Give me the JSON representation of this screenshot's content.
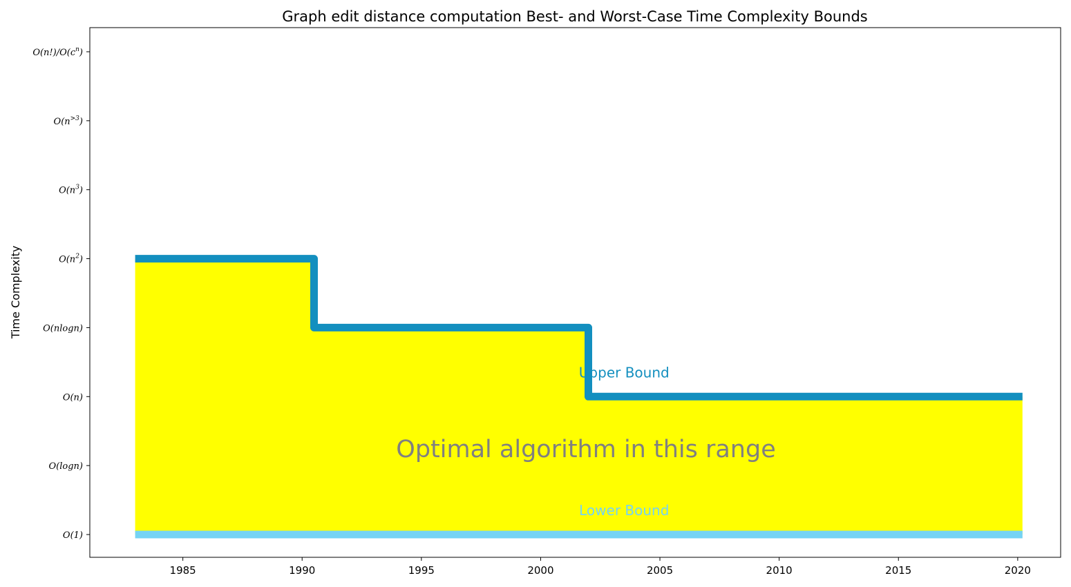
{
  "chart_data": {
    "type": "area",
    "title": "Graph edit distance computation Best- and Worst-Case Time Complexity Bounds",
    "xlabel": "",
    "ylabel": "Time Complexity",
    "xlim": [
      1981.1,
      2021.8
    ],
    "ylim": [
      -0.33,
      7.35
    ],
    "x_ticks": [
      1985,
      1990,
      1995,
      2000,
      2005,
      2010,
      2015,
      2020
    ],
    "y_ticks": [
      {
        "value": 0,
        "base": "O(1)",
        "sup": "",
        "tail": ""
      },
      {
        "value": 1,
        "base": "O(logn)",
        "sup": "",
        "tail": ""
      },
      {
        "value": 2,
        "base": "O(n)",
        "sup": "",
        "tail": ""
      },
      {
        "value": 3,
        "base": "O(nlogn)",
        "sup": "",
        "tail": ""
      },
      {
        "value": 4,
        "base": "O(n",
        "sup": "2",
        "tail": ")"
      },
      {
        "value": 5,
        "base": "O(n",
        "sup": "3",
        "tail": ")"
      },
      {
        "value": 6,
        "base": "O(n",
        "sup": ">3",
        "tail": ")"
      },
      {
        "value": 7,
        "base": "O(n!)/O(c",
        "sup": "n",
        "tail": ")"
      }
    ],
    "series": [
      {
        "name": "Upper Bound",
        "color": "#138fbf",
        "step": "post",
        "points": [
          [
            1983,
            4
          ],
          [
            1990.5,
            4
          ],
          [
            1990.5,
            3
          ],
          [
            2002,
            3
          ],
          [
            2002,
            2
          ],
          [
            2020.2,
            2
          ]
        ]
      },
      {
        "name": "Lower Bound",
        "color": "#75d3f4",
        "step": "post",
        "points": [
          [
            1983,
            0
          ],
          [
            2020.2,
            0
          ]
        ]
      }
    ],
    "fill": {
      "color": "#ffff00",
      "between": [
        "Lower Bound",
        "Upper Bound"
      ]
    },
    "annotations": [
      {
        "text": "Upper Bound",
        "x": 2003.5,
        "y": 2.28,
        "color": "#138fbf",
        "kind": "upper"
      },
      {
        "text": "Lower Bound",
        "x": 2003.5,
        "y": 0.28,
        "color": "#75d3f4",
        "kind": "lower"
      },
      {
        "text": "Optimal algorithm in this range",
        "x": 2001.9,
        "y": 1.12,
        "color": "#808080",
        "kind": "range"
      }
    ]
  }
}
